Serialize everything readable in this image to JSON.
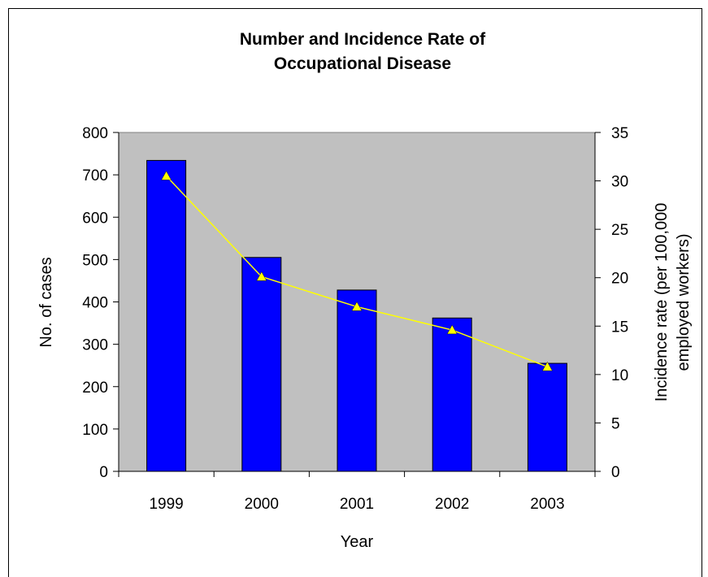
{
  "chart_data": {
    "type": "bar",
    "title": [
      "Number and Incidence Rate of",
      "Occupational Disease"
    ],
    "xlabel": "Year",
    "ylabel": "No. of cases",
    "y2label": [
      "Incidence rate (per 100,000",
      "employed workers)"
    ],
    "categories": [
      "1999",
      "2000",
      "2001",
      "2002",
      "2003"
    ],
    "series": [
      {
        "type": "bar",
        "axis": "left",
        "color": "#0000ff",
        "values": [
          734,
          505,
          428,
          362,
          255
        ]
      },
      {
        "type": "line",
        "axis": "right",
        "color": "#ffff00",
        "marker": "triangle",
        "values": [
          30.5,
          20.1,
          17.0,
          14.6,
          10.8
        ]
      }
    ],
    "ylim": [
      0,
      800
    ],
    "yticks": [
      "0",
      "100",
      "200",
      "300",
      "400",
      "500",
      "600",
      "700",
      "800"
    ],
    "y2lim": [
      0,
      35
    ],
    "y2ticks": [
      "0",
      "5",
      "10",
      "15",
      "20",
      "25",
      "30",
      "35"
    ],
    "plot_background": "#c0c0c0",
    "grid": false,
    "legend": "none"
  }
}
